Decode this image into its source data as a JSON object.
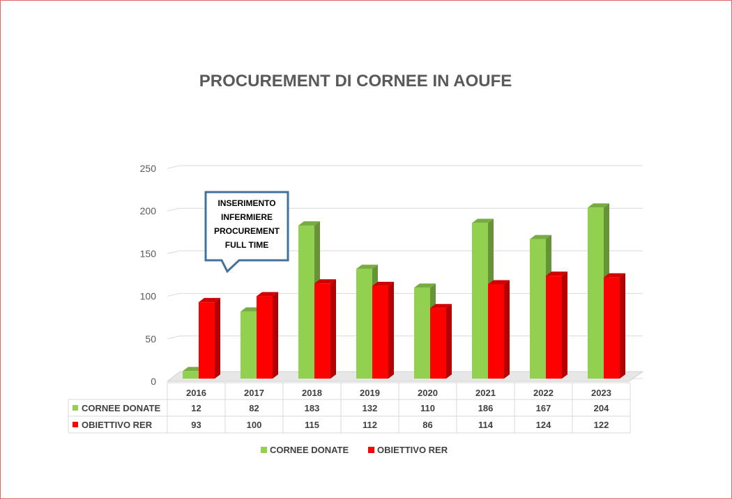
{
  "chart_data": {
    "type": "bar",
    "title": "PROCUREMENT DI CORNEE IN AOUFE",
    "categories": [
      "2016",
      "2017",
      "2018",
      "2019",
      "2020",
      "2021",
      "2022",
      "2023"
    ],
    "series": [
      {
        "name": "CORNEE DONATE",
        "values": [
          12,
          82,
          183,
          132,
          110,
          186,
          167,
          204
        ],
        "color": "#92d050"
      },
      {
        "name": "OBIETTIVO RER",
        "values": [
          93,
          100,
          115,
          112,
          86,
          114,
          124,
          122
        ],
        "color": "#ff0000"
      }
    ],
    "ylim": [
      0,
      250
    ],
    "yticks": [
      "0",
      "50",
      "100",
      "150",
      "200",
      "250"
    ],
    "grid": true,
    "data_table": true,
    "legend_position": "bottom",
    "annotation": [
      "INSERIMENTO",
      "INFERMIERE",
      "PROCUREMENT",
      "FULL TIME"
    ]
  }
}
